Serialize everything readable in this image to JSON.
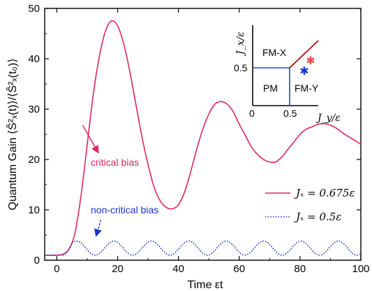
{
  "chart_data": {
    "type": "line",
    "xlabel": "Time εt",
    "ylabel": "Quantum Gain ⟨Ŝ²ₓ(t)⟩/⟨Ŝ²ₓ(t₀)⟩",
    "xlim": [
      -4,
      100
    ],
    "ylim": [
      0,
      50
    ],
    "xticks": [
      0,
      20,
      40,
      60,
      80,
      100
    ],
    "yticks": [
      0,
      10,
      20,
      30,
      40,
      50
    ],
    "grid": false,
    "legend_position": "bottom-right",
    "colors": {
      "critical": "#e0245e",
      "noncritical": "#1a35c8",
      "inset_boundary": "#2e4a9e",
      "inset_red": "#b00000"
    },
    "series": [
      {
        "name": "Jₓ = 0.675ε",
        "style": "solid",
        "x": [
          -4,
          0,
          2,
          4,
          6,
          8,
          10,
          12,
          14,
          16,
          18,
          20,
          22,
          24,
          26,
          28,
          30,
          32,
          34,
          36,
          38,
          40,
          42,
          44,
          46,
          48,
          50,
          52,
          54,
          56,
          58,
          60,
          62,
          64,
          66,
          68,
          70,
          72,
          74,
          76,
          78,
          80,
          82,
          84,
          86,
          88,
          90,
          92,
          94,
          96,
          98,
          100
        ],
        "y": [
          1,
          1,
          1.2,
          2.2,
          5.5,
          13,
          23,
          33,
          40.5,
          45.5,
          47.5,
          46.5,
          43,
          37.5,
          31,
          24.5,
          19,
          14.5,
          11.8,
          10.5,
          10.2,
          11,
          13.5,
          17.5,
          22,
          26,
          29,
          31,
          31.5,
          31,
          29.5,
          27,
          24.8,
          22.5,
          21,
          20,
          19.5,
          19.5,
          20.5,
          22,
          23.5,
          25,
          26,
          26.5,
          27,
          27.1,
          26.8,
          26.2,
          25.3,
          24.5,
          23.8,
          23
        ]
      },
      {
        "name": "Jₓ = 0.5ε",
        "style": "dotted",
        "oscillation": {
          "baseline": 1,
          "peak": 3.8,
          "period": 12.3,
          "first_peak_at": 6.5,
          "start": 2
        }
      }
    ],
    "annotations": [
      {
        "text": "critical bias",
        "arrow_from": [
          8.5,
          26.8
        ],
        "arrow_to": [
          13.5,
          21.5
        ]
      },
      {
        "text": "non-critical bias",
        "arrow_from": [
          14.5,
          8
        ],
        "arrow_to": [
          13,
          5
        ]
      }
    ],
    "inset": {
      "xlabel": "J_y/ε",
      "ylabel": "J_x/ε",
      "tick_labels": [
        "0",
        "0.5",
        "0.5",
        "0"
      ],
      "regions": [
        "FM-X",
        "PM",
        "FM-Y"
      ],
      "markers": [
        {
          "x": 0.7,
          "y": 0.58,
          "color": "#ee4b4b",
          "shape": "star"
        },
        {
          "x": 0.7,
          "y": 0.46,
          "color": "#1a35c8",
          "shape": "star"
        }
      ]
    }
  }
}
